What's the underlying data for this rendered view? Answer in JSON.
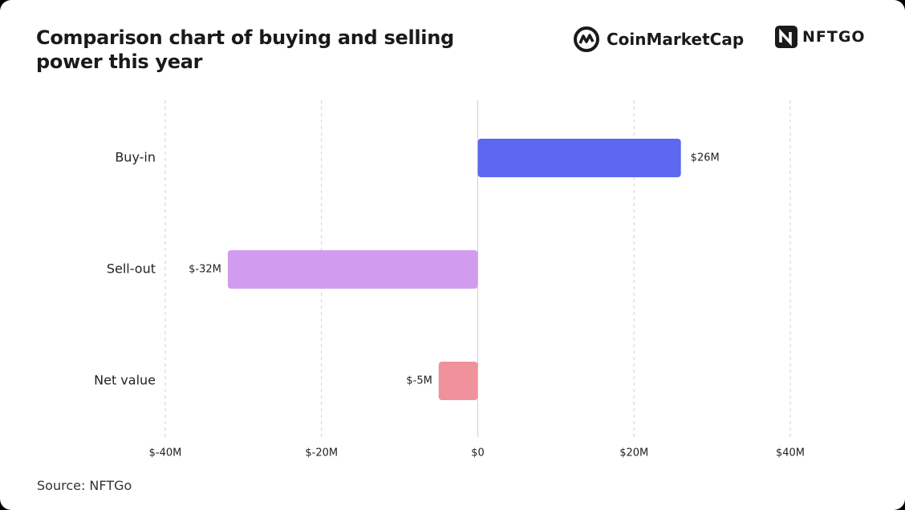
{
  "chart_data": {
    "type": "hbar",
    "title": "Comparison chart of buying and selling power this year",
    "logos": [
      "CoinMarketCap",
      "NFTGO"
    ],
    "source": "Source: NFTGo",
    "categories": [
      "Buy-in",
      "Sell-out",
      "Net value"
    ],
    "values": [
      26000000,
      -32000000,
      -5000000
    ],
    "value_labels": [
      "$26M",
      "$-32M",
      "$-5M"
    ],
    "colors": [
      "#5b68ef",
      "#d19cef",
      "#ef929b"
    ],
    "xlim": [
      -40000000,
      40000000
    ],
    "xticks": [
      {
        "value": -40000000,
        "label": "$-40M"
      },
      {
        "value": -20000000,
        "label": "$-20M"
      },
      {
        "value": 0,
        "label": "$0"
      },
      {
        "value": 20000000,
        "label": "$20M"
      },
      {
        "value": 40000000,
        "label": "$40M"
      }
    ],
    "grid": true
  }
}
